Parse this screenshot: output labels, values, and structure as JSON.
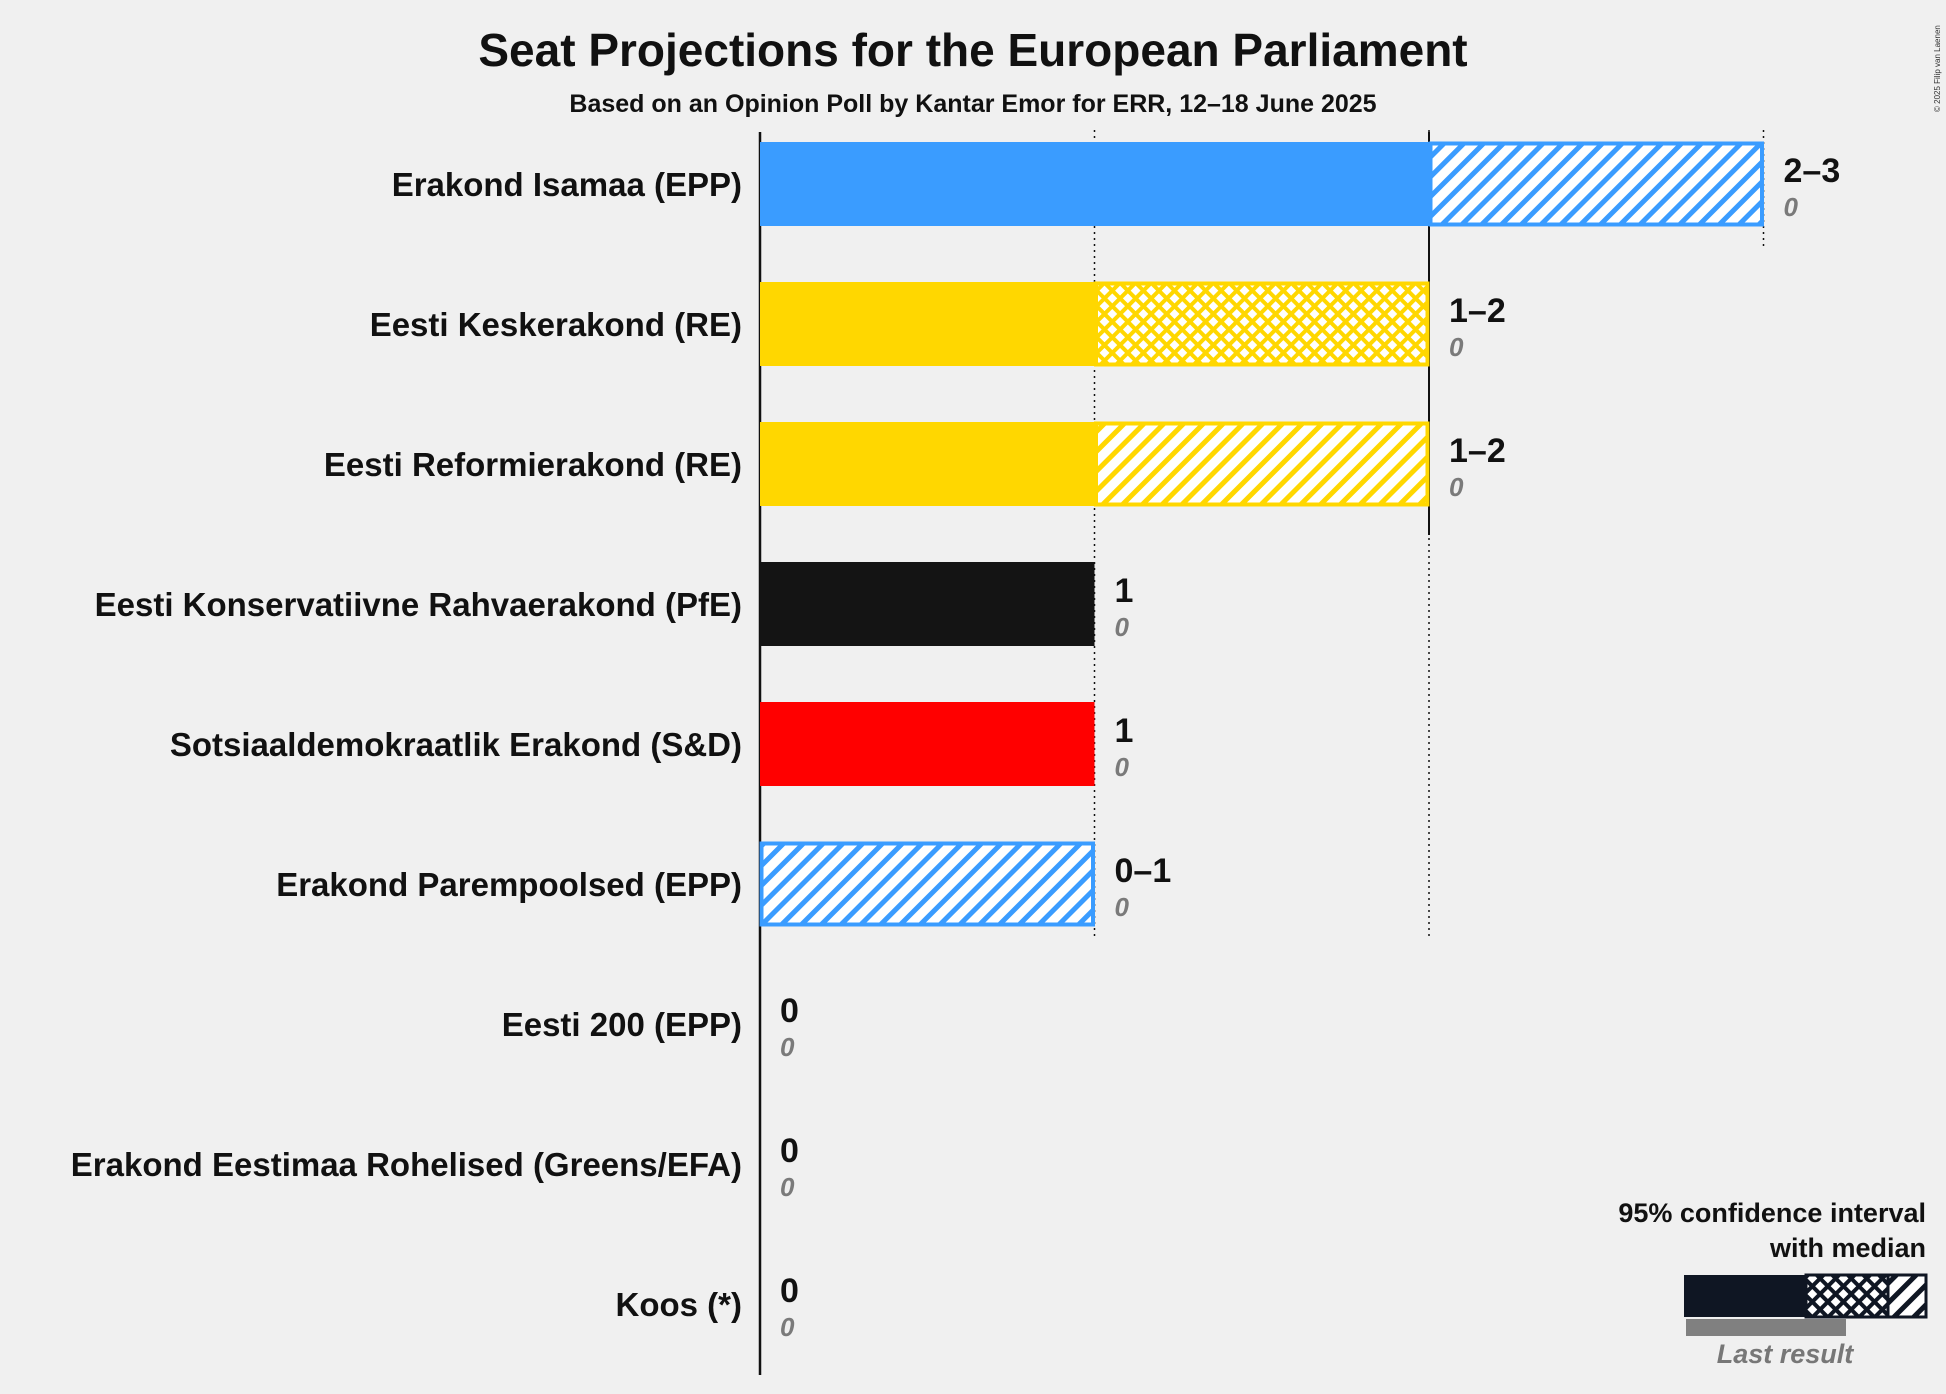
{
  "chart_data": {
    "type": "bar",
    "title": "Seat Projections for the European Parliament",
    "subtitle": "Based on an Opinion Poll by Kantar Emor for ERR, 12–18 June 2025",
    "copyright": "© 2025 Filip van Laenen",
    "xlim": [
      0,
      3
    ],
    "gridlines": [
      1,
      2
    ],
    "legend": {
      "title_line1": "95% confidence interval",
      "title_line2": "with median",
      "last_result": "Last result",
      "placement": "bottom-right"
    },
    "categories": [
      "Erakond Isamaa (EPP)",
      "Eesti Keskerakond (RE)",
      "Eesti Reformierakond (RE)",
      "Eesti Konservatiivne Rahvaerakond (PfE)",
      "Sotsiaaldemokraatlik Erakond (S&D)",
      "Erakond Parempoolsed (EPP)",
      "Eesti 200 (EPP)",
      "Erakond Eestimaa Rohelised (Greens/EFA)",
      "Koos (*)"
    ],
    "parties": [
      {
        "name": "Erakond Isamaa (EPP)",
        "color": "#3a9cff",
        "low": 2,
        "median": 2,
        "high": 3,
        "range_label": "2–3",
        "last_result": 0,
        "last_label": "0"
      },
      {
        "name": "Eesti Keskerakond (RE)",
        "color": "#ffd700",
        "low": 1,
        "median": 2,
        "high": 2,
        "range_label": "1–2",
        "last_result": 0,
        "last_label": "0"
      },
      {
        "name": "Eesti Reformierakond (RE)",
        "color": "#ffd700",
        "low": 1,
        "median": 1,
        "high": 2,
        "range_label": "1–2",
        "last_result": 0,
        "last_label": "0"
      },
      {
        "name": "Eesti Konservatiivne Rahvaerakond (PfE)",
        "color": "#141414",
        "low": 1,
        "median": 1,
        "high": 1,
        "range_label": "1",
        "last_result": 0,
        "last_label": "0"
      },
      {
        "name": "Sotsiaaldemokraatlik Erakond (S&D)",
        "color": "#ff0000",
        "low": 1,
        "median": 1,
        "high": 1,
        "range_label": "1",
        "last_result": 0,
        "last_label": "0"
      },
      {
        "name": "Erakond Parempoolsed (EPP)",
        "color": "#3a9cff",
        "low": 0,
        "median": 0,
        "high": 1,
        "range_label": "0–1",
        "last_result": 0,
        "last_label": "0"
      },
      {
        "name": "Eesti 200 (EPP)",
        "color": "#3a9cff",
        "low": 0,
        "median": 0,
        "high": 0,
        "range_label": "0",
        "last_result": 0,
        "last_label": "0"
      },
      {
        "name": "Erakond Eestimaa Rohelised (Greens/EFA)",
        "color": "#6ab023",
        "low": 0,
        "median": 0,
        "high": 0,
        "range_label": "0",
        "last_result": 0,
        "last_label": "0"
      },
      {
        "name": "Koos (*)",
        "color": "#888888",
        "low": 0,
        "median": 0,
        "high": 0,
        "range_label": "0",
        "last_result": 0,
        "last_label": "0"
      }
    ]
  }
}
